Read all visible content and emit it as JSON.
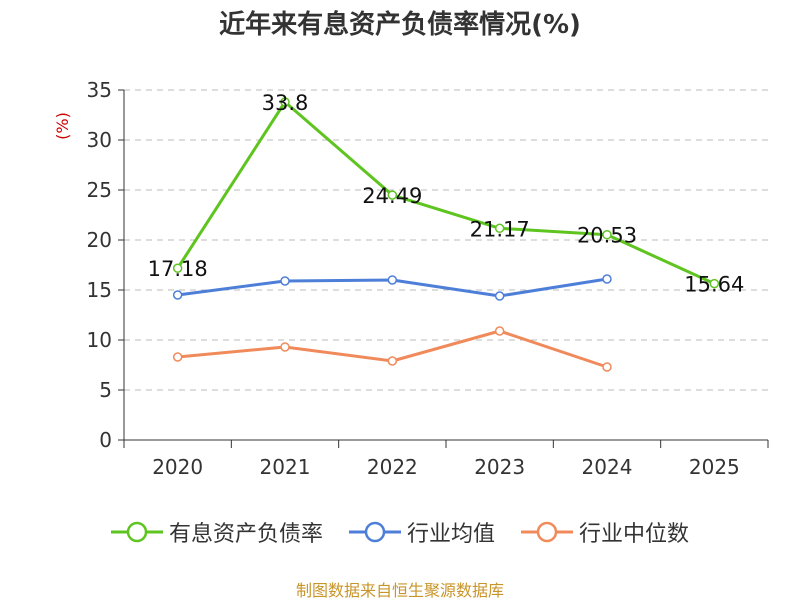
{
  "chart_data": {
    "type": "line",
    "title": "近年来有息资产负债率情况(%)",
    "ylabel": "(%)",
    "xlabel": "",
    "categories": [
      "2020",
      "2021",
      "2022",
      "2023",
      "2024",
      "2025"
    ],
    "ylim": [
      0,
      35
    ],
    "yticks": [
      0,
      5,
      10,
      15,
      20,
      25,
      30,
      35
    ],
    "grid": true,
    "legend_position": "bottom",
    "series": [
      {
        "name": "有息资产负债率",
        "color": "#5ec41f",
        "values": [
          17.18,
          33.8,
          24.49,
          21.17,
          20.53,
          15.64
        ],
        "labels": [
          "17.18",
          "33.8",
          "24.49",
          "21.17",
          "20.53",
          "15.64"
        ]
      },
      {
        "name": "行业均值",
        "color": "#4e7fd8",
        "values": [
          14.5,
          15.9,
          16.0,
          14.4,
          16.1,
          null
        ]
      },
      {
        "name": "行业中位数",
        "color": "#f08a5b",
        "values": [
          8.3,
          9.3,
          7.9,
          10.9,
          7.3,
          null
        ]
      }
    ]
  },
  "source": "制图数据来自恒生聚源数据库"
}
